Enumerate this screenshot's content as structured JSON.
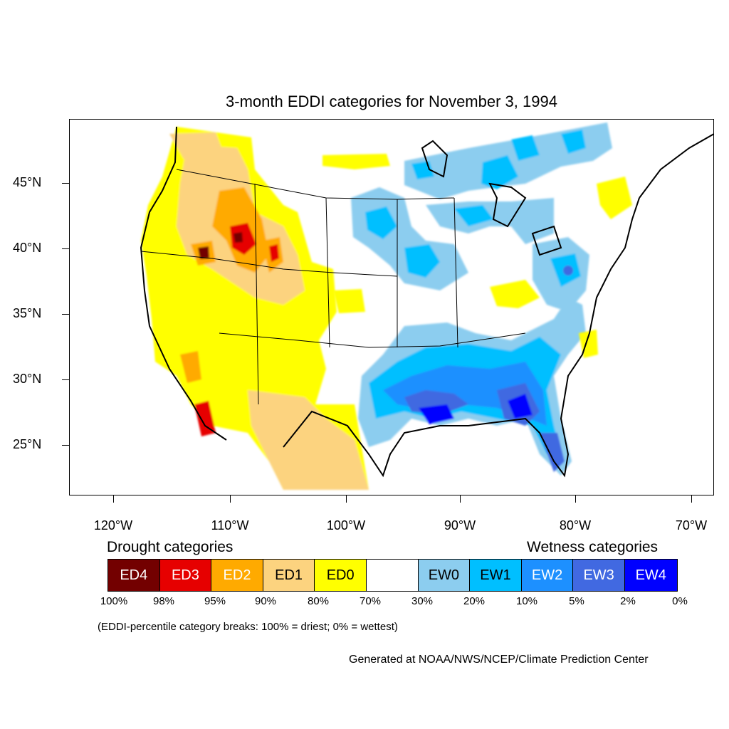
{
  "title": "3-month EDDI categories for November 3, 1994",
  "lat_labels": [
    "45°N",
    "40°N",
    "35°N",
    "30°N",
    "25°N"
  ],
  "lon_labels": [
    "120°W",
    "110°W",
    "100°W",
    "90°W",
    "80°W",
    "70°W"
  ],
  "legend": {
    "drought_heading": "Drought categories",
    "wetness_heading": "Wetness categories",
    "categories": [
      {
        "label": "ED4",
        "color": "#730000",
        "text_color": "#ffffff"
      },
      {
        "label": "ED3",
        "color": "#e60000",
        "text_color": "#ffffff"
      },
      {
        "label": "ED2",
        "color": "#ffaa00",
        "text_color": "#ffffff"
      },
      {
        "label": "ED1",
        "color": "#fcd37f",
        "text_color": "#000000"
      },
      {
        "label": "ED0",
        "color": "#ffff00",
        "text_color": "#000000"
      },
      {
        "label": "",
        "color": "#ffffff",
        "text_color": "#000000"
      },
      {
        "label": "EW0",
        "color": "#8ccdef",
        "text_color": "#000000"
      },
      {
        "label": "EW1",
        "color": "#00bfff",
        "text_color": "#000000"
      },
      {
        "label": "EW2",
        "color": "#1d90ff",
        "text_color": "#ffffff"
      },
      {
        "label": "EW3",
        "color": "#4169e1",
        "text_color": "#ffffff"
      },
      {
        "label": "EW4",
        "color": "#0000ff",
        "text_color": "#ffffff"
      }
    ],
    "percentiles": [
      "100%",
      "98%",
      "95%",
      "90%",
      "80%",
      "70%",
      "30%",
      "20%",
      "10%",
      "5%",
      "2%",
      "0%"
    ]
  },
  "note": "(EDDI-percentile category breaks: 100% = driest; 0% = wettest)",
  "credit": "Generated at NOAA/NWS/NCEP/Climate Prediction Center"
}
